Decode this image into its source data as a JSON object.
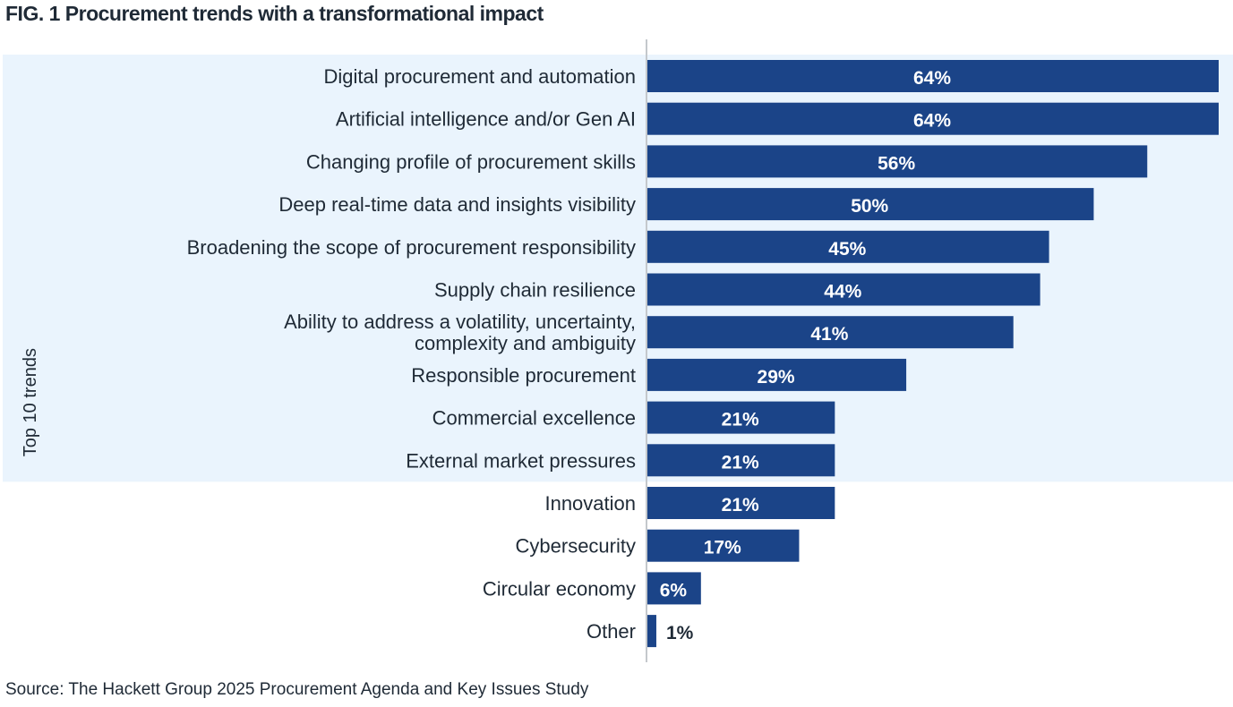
{
  "chart_data": {
    "type": "bar",
    "orientation": "horizontal",
    "title": "FIG. 1   Procurement trends with a transformational impact",
    "source": "Source: The Hackett Group 2025 Procurement Agenda and Key Issues Study",
    "group_label": "Top 10 trends",
    "group_size": 10,
    "categories": [
      [
        "Digital procurement and automation"
      ],
      [
        "Artificial intelligence and/or Gen AI"
      ],
      [
        "Changing profile of procurement skills"
      ],
      [
        "Deep real-time data and insights visibility"
      ],
      [
        "Broadening the scope of procurement responsibility"
      ],
      [
        "Supply chain resilience"
      ],
      [
        "Ability to address a volatility, uncertainty,",
        "complexity and ambiguity"
      ],
      [
        "Responsible procurement"
      ],
      [
        "Commercial excellence"
      ],
      [
        "External market pressures"
      ],
      [
        "Innovation"
      ],
      [
        "Cybersecurity"
      ],
      [
        "Circular economy"
      ],
      [
        "Other"
      ]
    ],
    "values": [
      64,
      64,
      56,
      50,
      45,
      44,
      41,
      29,
      21,
      21,
      21,
      17,
      6,
      1
    ],
    "value_labels": [
      "64%",
      "64%",
      "56%",
      "50%",
      "45%",
      "44%",
      "41%",
      "29%",
      "21%",
      "21%",
      "21%",
      "17%",
      "6%",
      "1%"
    ],
    "xlim": [
      0,
      64
    ],
    "grid": false,
    "colors": {
      "bar": "#1b4488",
      "highlight": "#eaf4fd",
      "axis": "#c4c8cc",
      "text": "#1f2a36"
    }
  }
}
